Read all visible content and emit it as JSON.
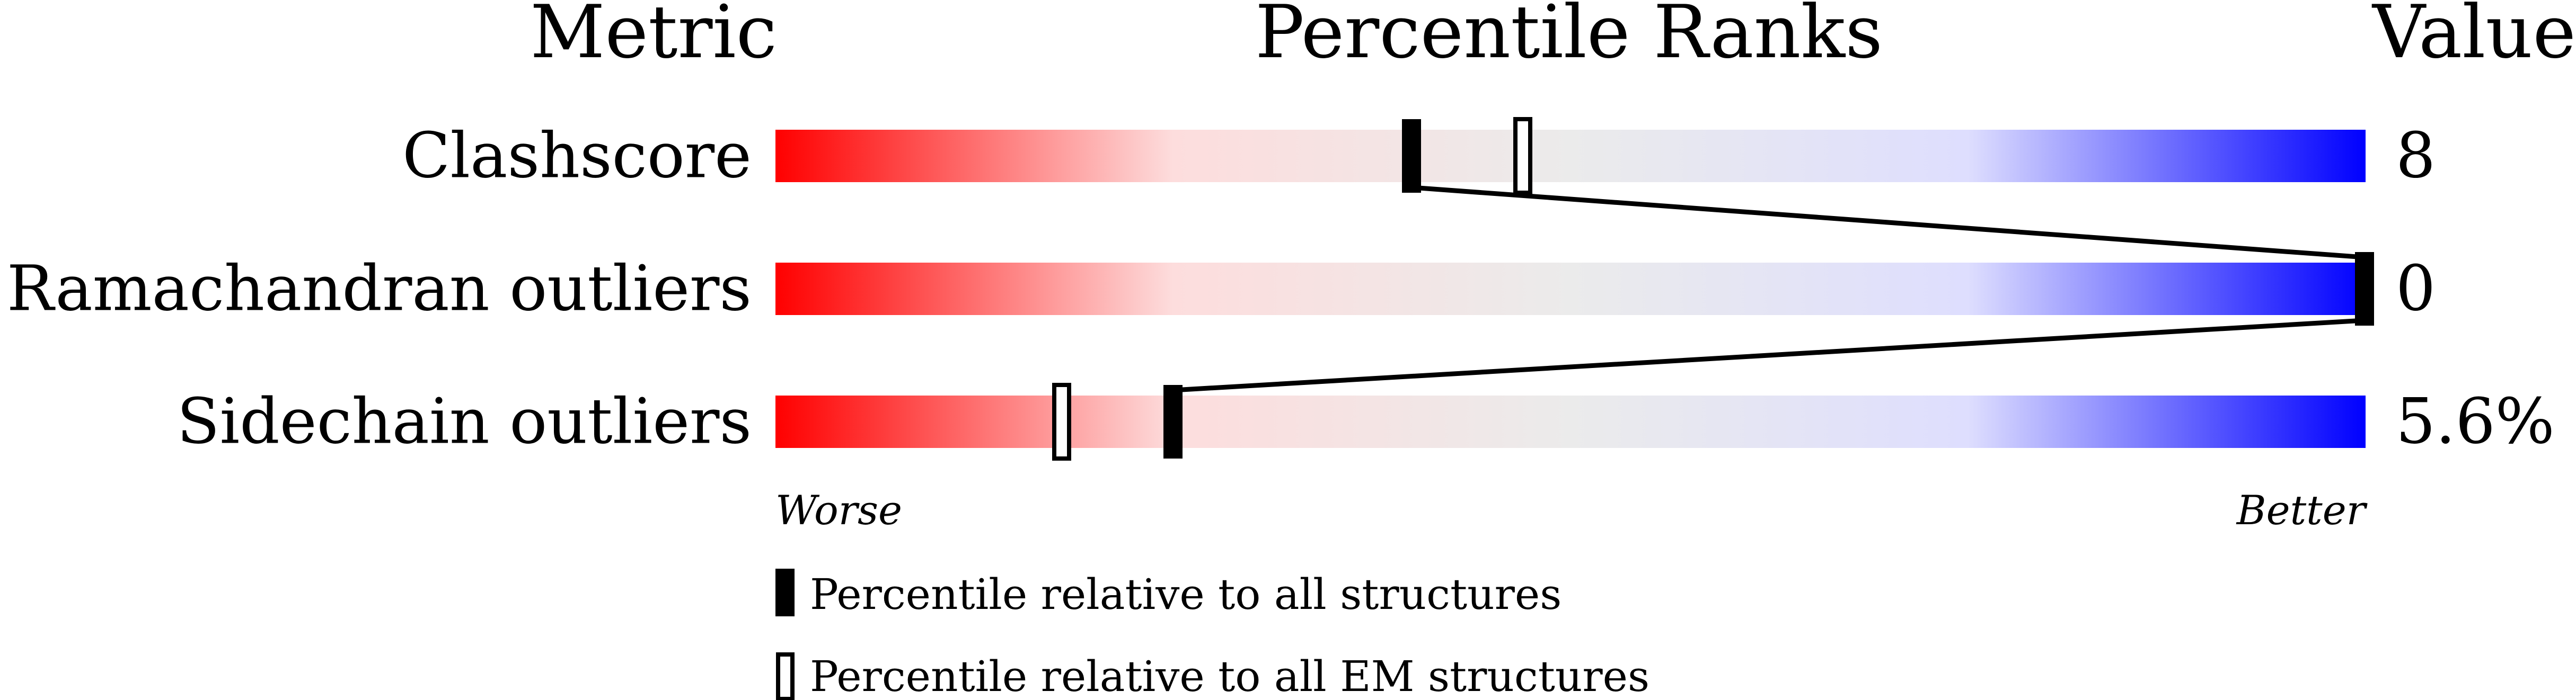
{
  "chart_data": {
    "type": "percentile-bar",
    "headers": {
      "metric": "Metric",
      "ranks": "Percentile Ranks",
      "value": "Value"
    },
    "xlim": [
      0,
      100
    ],
    "gradient_colors": [
      "#ff0000",
      "#fddddd",
      "#ebebeb",
      "#dedefe",
      "#0000ff"
    ],
    "rows": [
      {
        "metric": "Clashscore",
        "value": "8",
        "percentile_all": 40,
        "percentile_em": 47
      },
      {
        "metric": "Ramachandran outliers",
        "value": "0",
        "percentile_all": 100,
        "percentile_em": null
      },
      {
        "metric": "Sidechain outliers",
        "value": "5.6%",
        "percentile_all": 25,
        "percentile_em": 18
      }
    ],
    "axis_labels": {
      "left": "Worse",
      "right": "Better"
    },
    "legend": [
      {
        "marker": "filled",
        "label": "Percentile relative to all structures"
      },
      {
        "marker": "open",
        "label": "Percentile relative to all EM structures"
      }
    ]
  }
}
